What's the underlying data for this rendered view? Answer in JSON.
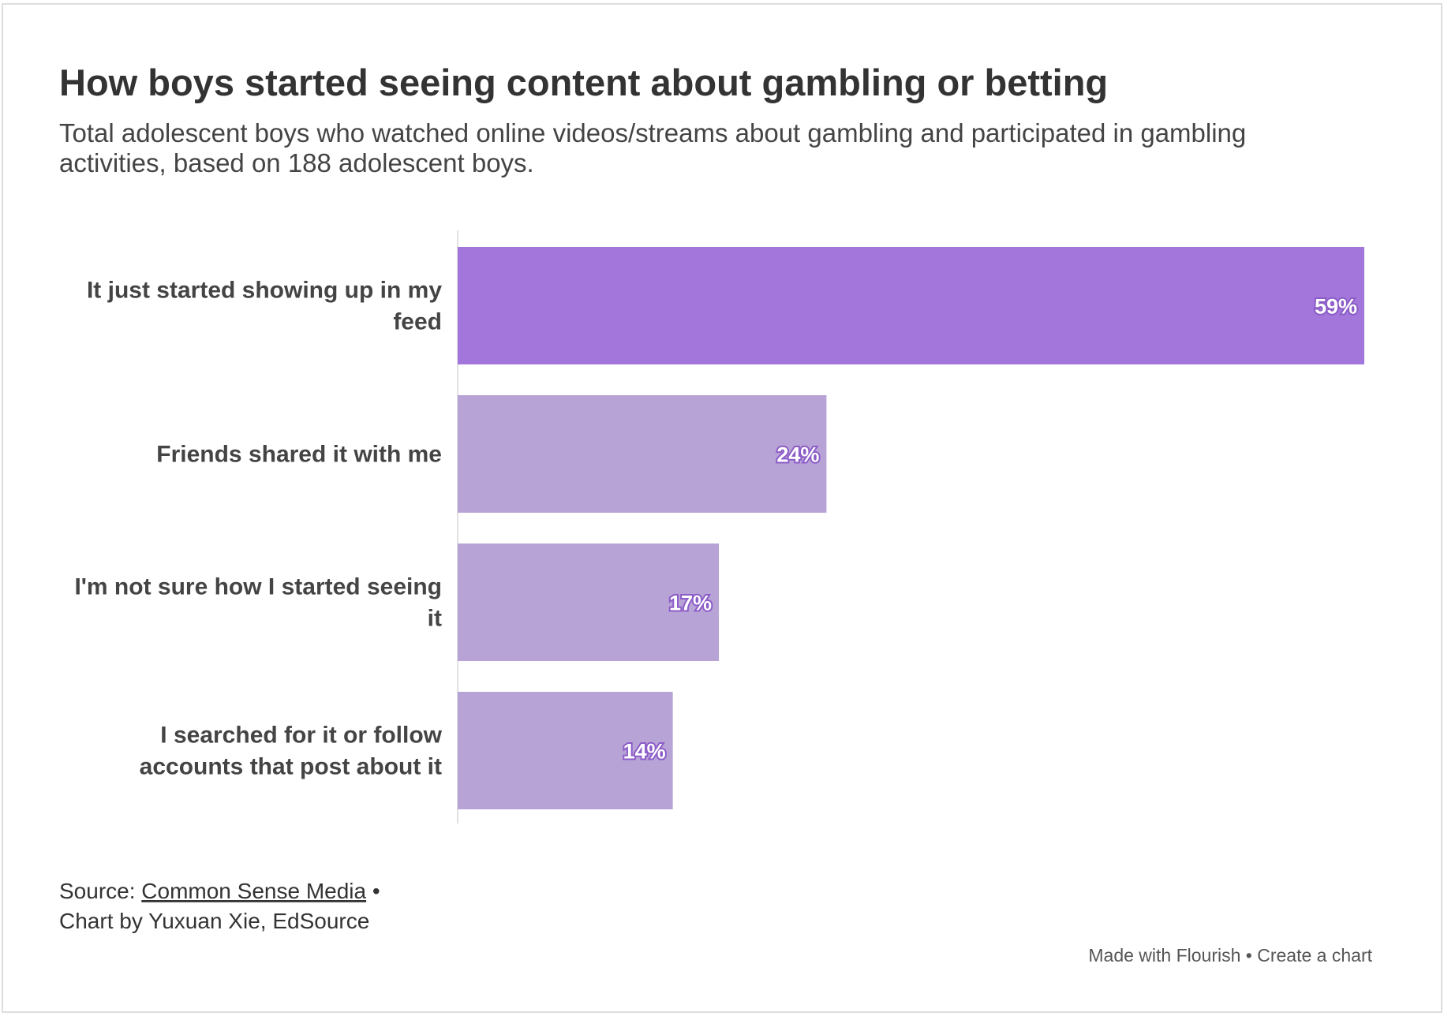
{
  "chart_data": {
    "type": "bar",
    "orientation": "horizontal",
    "title": "How boys started seeing content about gambling or betting",
    "subtitle": [
      "Total adolescent boys who watched online videos/streams about gambling and participated in gambling",
      "activities, based on 188 adolescent boys."
    ],
    "categories": [
      "It just started showing up in my feed",
      "Friends shared it with me",
      "I'm not sure how I started seeing it",
      "I searched for it or follow accounts that post about it"
    ],
    "values": [
      59,
      24,
      17,
      14
    ],
    "value_labels": [
      "59%",
      "24%",
      "17%",
      "14%"
    ],
    "colors": [
      "#a276da",
      "#b8a3d6",
      "#b8a3d6",
      "#b8a3d6"
    ],
    "source": {
      "prefix": "Source:",
      "link": "Common Sense Media",
      "suffix": "•",
      "credit": "Chart by Yuxuan Xie, EdSource"
    },
    "footer": [
      "Made with Flourish",
      "•",
      "Create a chart"
    ]
  }
}
